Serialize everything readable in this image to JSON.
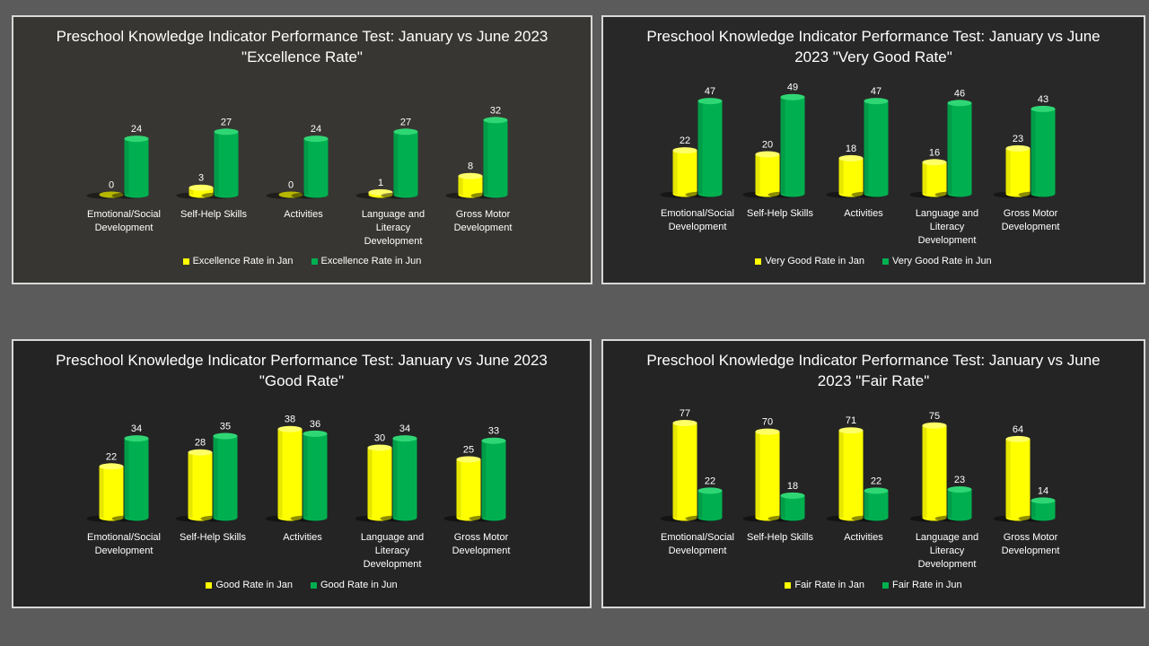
{
  "colors": {
    "jan": "#ffff00",
    "jun": "#00b050",
    "jun_dark": "#007a38",
    "jan_dark": "#b8b800"
  },
  "chart_data": [
    {
      "type": "bar",
      "title": "Preschool Knowledge Indicator Performance Test: January vs June 2023 \"Excellence Rate\"",
      "categories": [
        "Emotional/Social Development",
        "Self-Help Skills",
        "Activities",
        "Language and Literacy Development",
        "Gross Motor Development"
      ],
      "series": [
        {
          "name": "Excellence Rate in Jan",
          "values": [
            0,
            3,
            0,
            1,
            8
          ]
        },
        {
          "name": "Excellence Rate in Jun",
          "values": [
            24,
            27,
            24,
            27,
            32
          ]
        }
      ],
      "legend": "bottom-center",
      "grid": false
    },
    {
      "type": "bar",
      "title": "Preschool Knowledge Indicator Performance Test: January vs June 2023 \"Very Good Rate\"",
      "categories": [
        "Emotional/Social Development",
        "Self-Help Skills",
        "Activities",
        "Language and Literacy Development",
        "Gross Motor Development"
      ],
      "series": [
        {
          "name": "Very Good Rate in Jan",
          "values": [
            22,
            20,
            18,
            16,
            23
          ]
        },
        {
          "name": "Very Good Rate in Jun",
          "values": [
            47,
            49,
            47,
            46,
            43
          ]
        }
      ],
      "legend": "bottom-center",
      "grid": false
    },
    {
      "type": "bar",
      "title": "Preschool Knowledge Indicator Performance Test: January vs June 2023 \"Good Rate\"",
      "categories": [
        "Emotional/Social Development",
        "Self-Help Skills",
        "Activities",
        "Language and Literacy Development",
        "Gross Motor Development"
      ],
      "series": [
        {
          "name": "Good Rate in Jan",
          "values": [
            22,
            28,
            38,
            30,
            25
          ]
        },
        {
          "name": "Good Rate in Jun",
          "values": [
            34,
            35,
            36,
            34,
            33
          ]
        }
      ],
      "legend": "bottom-center",
      "grid": false
    },
    {
      "type": "bar",
      "title": "Preschool Knowledge Indicator Performance Test: January vs June 2023 \"Fair Rate\"",
      "categories": [
        "Emotional/Social Development",
        "Self-Help Skills",
        "Activities",
        "Language and Literacy Development",
        "Gross Motor Development"
      ],
      "series": [
        {
          "name": "Fair Rate in Jan",
          "values": [
            77,
            70,
            71,
            75,
            64
          ]
        },
        {
          "name": "Fair Rate in Jun",
          "values": [
            22,
            18,
            22,
            23,
            14
          ]
        }
      ],
      "legend": "bottom-center",
      "grid": false
    }
  ]
}
